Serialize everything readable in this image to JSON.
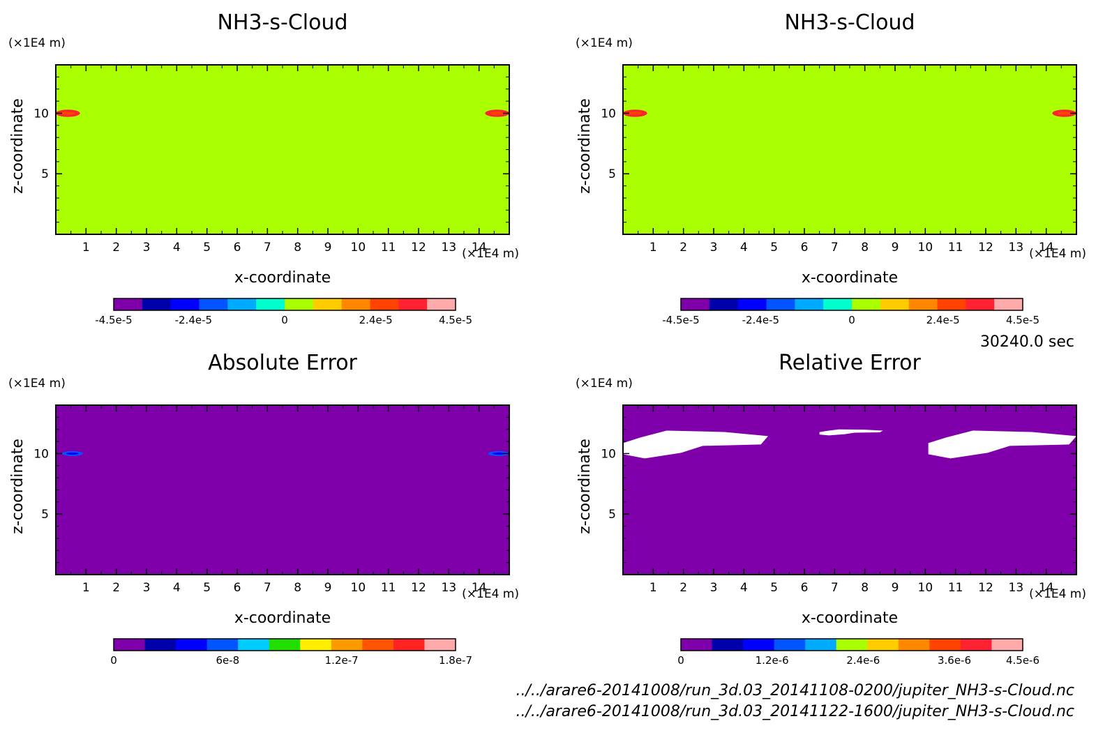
{
  "time_label": "30240.0 sec",
  "files": [
    "../../arare6-20141008/run_3d.03_20141108-0200/jupiter_NH3-s-Cloud.nc",
    "../../arare6-20141008/run_3d.03_20141122-1600/jupiter_NH3-s-Cloud.nc"
  ],
  "colors": {
    "field_background": "#aaff00",
    "error_background": "#7f00aa",
    "missing": "#ffffff"
  },
  "chart_data": [
    {
      "type": "heatmap",
      "title": "NH3-s-Cloud",
      "xlabel": "x-coordinate",
      "ylabel": "z-coordinate",
      "x_unit": "(×1E4 m)",
      "y_unit": "(×1E4 m)",
      "xlim": [
        0,
        15
      ],
      "ylim": [
        0,
        14
      ],
      "x_ticks": [
        "1",
        "2",
        "3",
        "4",
        "5",
        "6",
        "7",
        "8",
        "9",
        "10",
        "11",
        "12",
        "13",
        "14"
      ],
      "y_ticks": [
        "5",
        "10"
      ],
      "background_value": 0,
      "features": [
        {
          "x": [
            0.0,
            0.8
          ],
          "z": [
            9.7,
            10.3
          ],
          "value": 3.6e-05
        },
        {
          "x": [
            14.2,
            15.0
          ],
          "z": [
            9.7,
            10.3
          ],
          "value": 3.6e-05
        }
      ],
      "colorbar": {
        "labels": [
          "-4.5e-5",
          "-2.4e-5",
          "0",
          "2.4e-5",
          "4.5e-5"
        ],
        "colors": [
          "#7f00aa",
          "#0000aa",
          "#0000ff",
          "#0055ff",
          "#00aaff",
          "#00ffcc",
          "#aaff00",
          "#ffcc00",
          "#ff8800",
          "#ff4400",
          "#ff2233",
          "#ffaaaa"
        ]
      }
    },
    {
      "type": "heatmap",
      "title": "NH3-s-Cloud",
      "xlabel": "x-coordinate",
      "ylabel": "z-coordinate",
      "x_unit": "(×1E4 m)",
      "y_unit": "(×1E4 m)",
      "xlim": [
        0,
        15
      ],
      "ylim": [
        0,
        14
      ],
      "x_ticks": [
        "1",
        "2",
        "3",
        "4",
        "5",
        "6",
        "7",
        "8",
        "9",
        "10",
        "11",
        "12",
        "13",
        "14"
      ],
      "y_ticks": [
        "5",
        "10"
      ],
      "background_value": 0,
      "features": [
        {
          "x": [
            0.0,
            0.8
          ],
          "z": [
            9.7,
            10.3
          ],
          "value": 3.6e-05
        },
        {
          "x": [
            14.2,
            15.0
          ],
          "z": [
            9.7,
            10.3
          ],
          "value": 3.6e-05
        }
      ],
      "colorbar": {
        "labels": [
          "-4.5e-5",
          "-2.4e-5",
          "0",
          "2.4e-5",
          "4.5e-5"
        ],
        "colors": [
          "#7f00aa",
          "#0000aa",
          "#0000ff",
          "#0055ff",
          "#00aaff",
          "#00ffcc",
          "#aaff00",
          "#ffcc00",
          "#ff8800",
          "#ff4400",
          "#ff2233",
          "#ffaaaa"
        ]
      }
    },
    {
      "type": "heatmap",
      "title": "Absolute Error",
      "xlabel": "x-coordinate",
      "ylabel": "z-coordinate",
      "x_unit": "(×1E4 m)",
      "y_unit": "(×1E4 m)",
      "xlim": [
        0,
        15
      ],
      "ylim": [
        0,
        14
      ],
      "x_ticks": [
        "1",
        "2",
        "3",
        "4",
        "5",
        "6",
        "7",
        "8",
        "9",
        "10",
        "11",
        "12",
        "13",
        "14"
      ],
      "y_ticks": [
        "5",
        "10"
      ],
      "background_value": 0,
      "features": [
        {
          "x": [
            0.2,
            0.9
          ],
          "z": [
            9.8,
            10.2
          ],
          "value": 6e-08
        },
        {
          "x": [
            14.3,
            15.0
          ],
          "z": [
            9.8,
            10.2
          ],
          "value": 6e-08
        }
      ],
      "colorbar": {
        "labels": [
          "0",
          "6e-8",
          "1.2e-7",
          "1.8e-7"
        ],
        "colors": [
          "#7f00aa",
          "#0000aa",
          "#0000ff",
          "#0055ff",
          "#00ccff",
          "#22dd00",
          "#ffee00",
          "#ff9900",
          "#ff5500",
          "#ff2222",
          "#ffaaaa"
        ]
      }
    },
    {
      "type": "heatmap",
      "title": "Relative Error",
      "xlabel": "x-coordinate",
      "ylabel": "z-coordinate",
      "x_unit": "(×1E4 m)",
      "y_unit": "(×1E4 m)",
      "xlim": [
        0,
        15
      ],
      "ylim": [
        0,
        14
      ],
      "x_ticks": [
        "1",
        "2",
        "3",
        "4",
        "5",
        "6",
        "7",
        "8",
        "9",
        "10",
        "11",
        "12",
        "13",
        "14"
      ],
      "y_ticks": [
        "5",
        "10"
      ],
      "background_value": 0,
      "missing_regions": [
        {
          "x": [
            0.0,
            4.8
          ],
          "z": [
            9.6,
            11.9
          ]
        },
        {
          "x": [
            6.5,
            8.6
          ],
          "z": [
            11.5,
            12.0
          ]
        },
        {
          "x": [
            10.1,
            15.0
          ],
          "z": [
            9.6,
            11.9
          ]
        }
      ],
      "colorbar": {
        "labels": [
          "0",
          "1.2e-6",
          "2.4e-6",
          "3.6e-6",
          "4.5e-6"
        ],
        "colors": [
          "#7f00aa",
          "#0000aa",
          "#0000ff",
          "#0055ff",
          "#00aaff",
          "#aaff00",
          "#ffcc00",
          "#ff8800",
          "#ff4400",
          "#ff2233",
          "#ffaaaa"
        ]
      }
    }
  ]
}
